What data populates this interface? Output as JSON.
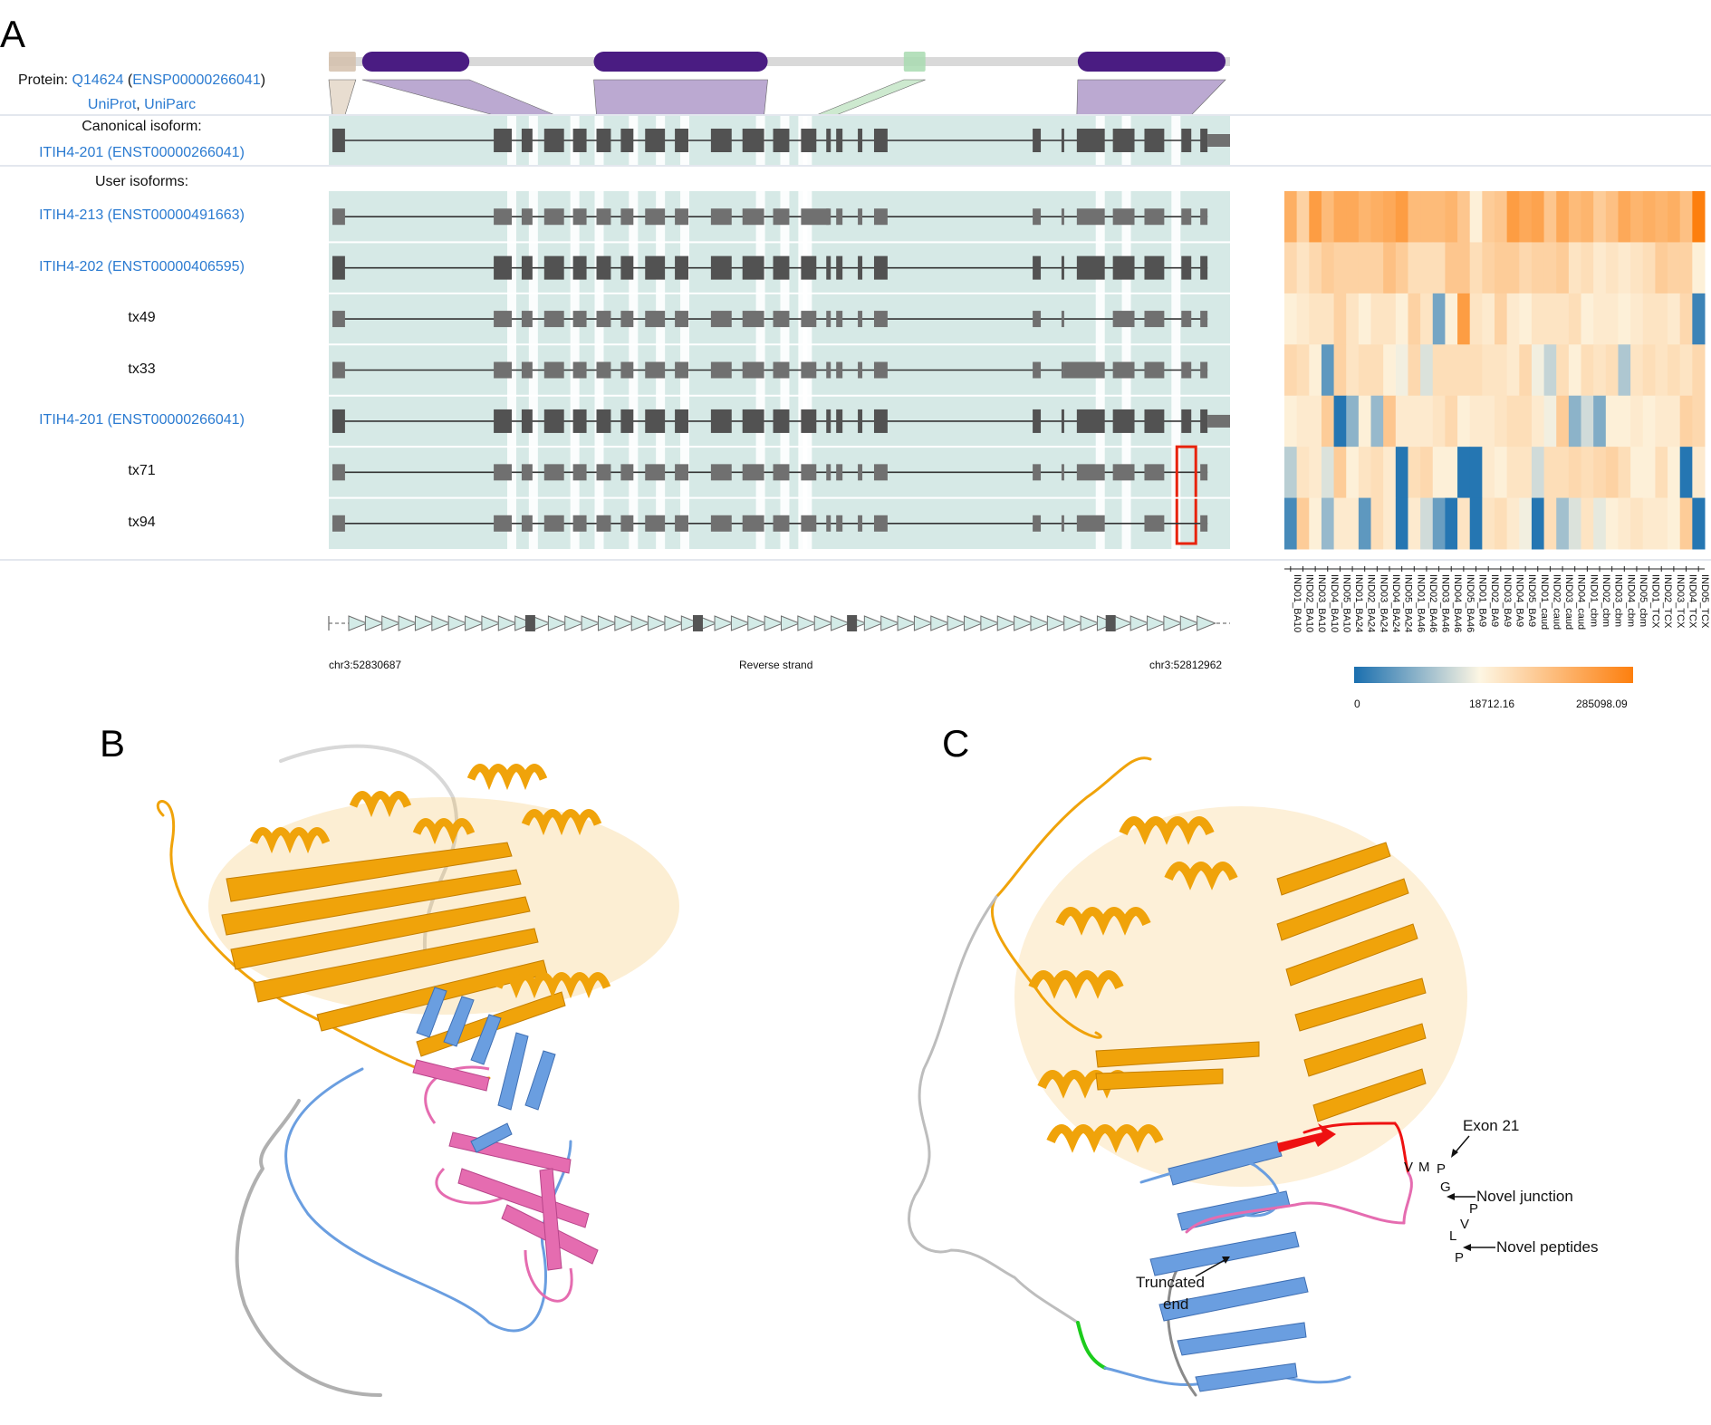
{
  "panel_labels": {
    "a": "A",
    "b": "B",
    "c": "C"
  },
  "protein": {
    "prefix": "Protein: ",
    "uniprot_id": "Q14624",
    "ensp_open": " (",
    "ensp_id": "ENSP00000266041",
    "ensp_close": ")",
    "link_uniprot": "UniProt",
    "link_comma": ", ",
    "link_uniparc": "UniParc",
    "domains": [
      {
        "name": "signal",
        "start": 0.0,
        "end": 0.03,
        "color": "#d4c0ac"
      },
      {
        "name": "domain1",
        "start": 0.037,
        "end": 0.156,
        "color": "#4a1c82"
      },
      {
        "name": "domain2",
        "start": 0.294,
        "end": 0.487,
        "color": "#4a1c82"
      },
      {
        "name": "small",
        "start": 0.638,
        "end": 0.662,
        "color": "#a8dbb0"
      },
      {
        "name": "domain3",
        "start": 0.831,
        "end": 0.995,
        "color": "#4a1c82"
      }
    ]
  },
  "canonical": {
    "heading": "Canonical isoform:",
    "name": "ITIH4-201 (ENST00000266041)"
  },
  "user_isoforms": {
    "heading": "User isoforms:",
    "rows": [
      {
        "name": "ITIH4-213 (ENST00000491663)",
        "link": true,
        "style": "light",
        "utr_end": 0.953,
        "skip_exon": null,
        "extra_wide": 12
      },
      {
        "name": "ITIH4-202 (ENST00000406595)",
        "link": true,
        "style": "dark",
        "utr_end": 0.957,
        "skip_exon": null
      },
      {
        "name": "tx49",
        "link": false,
        "style": "light",
        "utr_end": null,
        "skip_exon": 19
      },
      {
        "name": "tx33",
        "link": false,
        "style": "light",
        "utr_end": null,
        "skip_exon": null,
        "wide_exon": 19
      },
      {
        "name": "ITIH4-201 (ENST00000266041)",
        "link": true,
        "style": "dark",
        "utr_end": 1.0,
        "skip_exon": null
      },
      {
        "name": "tx71",
        "link": false,
        "style": "light",
        "utr_end": null,
        "skip_exon": 22,
        "highlight": true
      },
      {
        "name": "tx94",
        "link": false,
        "style": "light",
        "utr_end": null,
        "skip_exon": 22,
        "skip_exon2": 20
      }
    ]
  },
  "exons": [
    [
      0.004,
      0.018
    ],
    [
      0.183,
      0.203
    ],
    [
      0.214,
      0.226
    ],
    [
      0.239,
      0.261
    ],
    [
      0.271,
      0.286
    ],
    [
      0.297,
      0.313
    ],
    [
      0.324,
      0.338
    ],
    [
      0.351,
      0.373
    ],
    [
      0.384,
      0.399
    ],
    [
      0.424,
      0.447
    ],
    [
      0.459,
      0.483
    ],
    [
      0.493,
      0.511
    ],
    [
      0.524,
      0.541
    ],
    [
      0.552,
      0.557
    ],
    [
      0.563,
      0.57
    ],
    [
      0.587,
      0.592
    ],
    [
      0.605,
      0.62
    ],
    [
      0.781,
      0.79
    ],
    [
      0.813,
      0.816
    ],
    [
      0.83,
      0.861
    ],
    [
      0.87,
      0.894
    ],
    [
      0.905,
      0.927
    ],
    [
      0.946,
      0.957
    ],
    [
      0.967,
      0.975
    ]
  ],
  "gaps": [
    0.203,
    0.214,
    0.226,
    0.239,
    0.261,
    0.271,
    0.286,
    0.297,
    0.313,
    0.324,
    0.338,
    0.351,
    0.373,
    0.384,
    0.399,
    0.424,
    0.447,
    0.459,
    0.483,
    0.493,
    0.511,
    0.524,
    0.541,
    0.552,
    0.557,
    0.563,
    0.861,
    0.87,
    0.894,
    0.905,
    0.957,
    0.967
  ],
  "strand": {
    "left": "chr3:52830687",
    "middle": "Reverse strand",
    "right": "chr3:52812962"
  },
  "heatmap": {
    "columns": [
      "IND01_BA10",
      "IND02_BA10",
      "IND03_BA10",
      "IND04_BA10",
      "IND05_BA10",
      "IND01_BA24",
      "IND02_BA24",
      "IND03_BA24",
      "IND04_BA24",
      "IND05_BA24",
      "IND01_BA46",
      "IND02_BA46",
      "IND03_BA46",
      "IND04_BA46",
      "IND05_BA46",
      "IND01_BA9",
      "IND02_BA9",
      "IND03_BA9",
      "IND04_BA9",
      "IND05_BA9",
      "IND01_caud",
      "IND02_caud",
      "IND03_caud",
      "IND04_caud",
      "IND01_cbm",
      "IND02_cbm",
      "IND03_cbm",
      "IND04_cbm",
      "IND05_cbm",
      "IND01_TCX",
      "IND02_TCX",
      "IND03_TCX",
      "IND04_TCX",
      "IND05_TCX"
    ],
    "rows": [
      [
        0.6,
        0.3,
        0.75,
        0.5,
        0.65,
        0.65,
        0.55,
        0.6,
        0.65,
        0.75,
        0.5,
        0.5,
        0.5,
        0.55,
        0.4,
        0.05,
        0.35,
        0.4,
        0.75,
        0.65,
        0.7,
        0.4,
        0.65,
        0.5,
        0.55,
        0.35,
        0.45,
        0.65,
        0.55,
        0.6,
        0.55,
        0.6,
        0.45,
        1.0
      ],
      [
        0.25,
        0.15,
        0.25,
        0.35,
        0.3,
        0.3,
        0.3,
        0.3,
        0.45,
        0.35,
        0.2,
        0.2,
        0.2,
        0.4,
        0.4,
        0.2,
        0.3,
        0.35,
        0.35,
        0.25,
        0.3,
        0.3,
        0.35,
        0.15,
        0.2,
        0.1,
        0.15,
        0.1,
        0.15,
        0.2,
        0.35,
        0.3,
        0.3,
        0.05
      ],
      [
        0.05,
        0.1,
        0.15,
        0.15,
        0.3,
        0.15,
        0.05,
        0.15,
        0.15,
        0.05,
        0.3,
        0.15,
        -0.6,
        0.05,
        0.75,
        0.15,
        0.1,
        0.3,
        0.1,
        0.05,
        0.15,
        0.15,
        0.15,
        0.2,
        0.05,
        0.1,
        0.1,
        0.05,
        0.1,
        0.15,
        0.15,
        0.1,
        0.25,
        -0.85
      ],
      [
        0.25,
        0.2,
        0.05,
        -0.7,
        0.3,
        0.15,
        0.2,
        0.2,
        0.05,
        -0.05,
        0.25,
        -0.15,
        0.2,
        0.2,
        0.2,
        0.2,
        0.15,
        0.15,
        0.1,
        0.25,
        -0.05,
        -0.25,
        0.2,
        0.05,
        0.2,
        0.15,
        0.2,
        -0.35,
        0.15,
        0.2,
        0.15,
        0.2,
        0.15,
        0.25
      ],
      [
        0.05,
        0.1,
        0.1,
        0.35,
        -0.95,
        -0.5,
        0.05,
        -0.45,
        0.4,
        0.1,
        0.1,
        0.1,
        0.15,
        0.25,
        0.05,
        0.1,
        0.1,
        0.15,
        0.2,
        0.2,
        0.1,
        -0.05,
        0.35,
        -0.5,
        -0.2,
        -0.55,
        0.05,
        0.05,
        0.1,
        0.05,
        0.1,
        0.1,
        0.3,
        0.25
      ],
      [
        -0.3,
        0.15,
        0.1,
        -0.15,
        0.35,
        0.05,
        0.15,
        0.2,
        0.1,
        -0.95,
        0.2,
        0.25,
        0.05,
        0.05,
        -0.95,
        -0.95,
        0.1,
        0.05,
        0.15,
        0.15,
        -0.2,
        0.2,
        0.2,
        0.25,
        0.2,
        0.25,
        0.3,
        0.2,
        0.05,
        0.05,
        0.2,
        0.05,
        -0.95,
        0.1
      ],
      [
        -0.8,
        0.35,
        0.05,
        -0.45,
        0.1,
        0.1,
        -0.7,
        0.2,
        0.1,
        -0.95,
        0.1,
        -0.2,
        -0.65,
        -0.95,
        0.15,
        -0.95,
        0.15,
        0.2,
        0.1,
        -0.05,
        -0.95,
        0.2,
        -0.4,
        -0.15,
        0.15,
        -0.1,
        0.05,
        0.1,
        0.15,
        0.1,
        0.1,
        0.05,
        0.35,
        -0.95
      ]
    ],
    "colorbar": {
      "min": "0",
      "mid": "18712.16",
      "max": "285098.09",
      "low_color": "#1a6faf",
      "mid_color": "#fdf6e3",
      "high_color": "#fd7f0e"
    }
  },
  "structure_b": {
    "colors": {
      "main": "#f0a30a",
      "blue": "#6a9ee0",
      "pink": "#e56cb0",
      "grey": "#a9a9a9"
    }
  },
  "structure_c": {
    "annotations": {
      "exon21": "Exon 21",
      "novel_junction": "Novel junction",
      "novel_peptides": "Novel peptides",
      "truncated": "Truncated",
      "truncated2": "end",
      "aa_V1": "V",
      "aa_M": "M",
      "aa_P1": "P",
      "aa_G": "G",
      "aa_P2": "P",
      "aa_V2": "V",
      "aa_L": "L",
      "aa_P3": "P"
    },
    "colors": {
      "main": "#f0a30a",
      "blue": "#6a9ee0",
      "pink": "#e56cb0",
      "red": "#ee1111",
      "green": "#1ccc1c",
      "grey": "#9a9a9a"
    }
  }
}
